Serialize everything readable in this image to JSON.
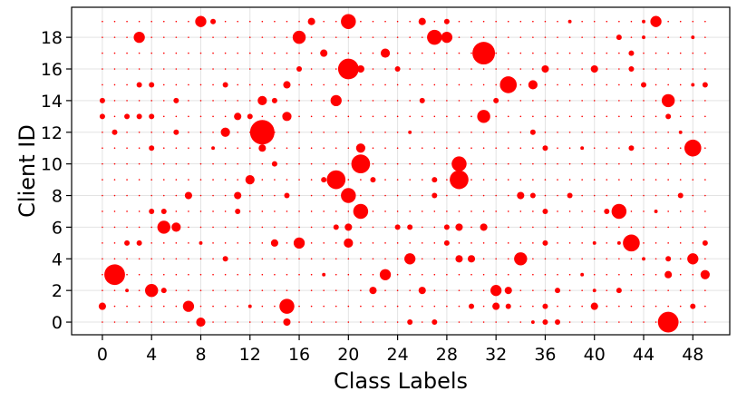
{
  "chart_data": {
    "type": "scatter",
    "xlabel": "Class Labels",
    "ylabel": "Client ID",
    "xlim": [
      -2.5,
      51
    ],
    "ylim": [
      -0.8,
      19.9
    ],
    "xticks": [
      0,
      4,
      8,
      12,
      16,
      20,
      24,
      28,
      32,
      36,
      40,
      44,
      48
    ],
    "yticks": [
      0,
      2,
      4,
      6,
      8,
      10,
      12,
      14,
      16,
      18
    ],
    "grid": true,
    "marker_color": "#ff0000",
    "size_encoding": "marker area proportional to number of samples (relative scale 0-10)",
    "points": [
      [
        0,
        1,
        3
      ],
      [
        1,
        3,
        10
      ],
      [
        4,
        2,
        6
      ],
      [
        7,
        1,
        5
      ],
      [
        8,
        0,
        4
      ],
      [
        15,
        1,
        7
      ],
      [
        15,
        0,
        3
      ],
      [
        22,
        2,
        3
      ],
      [
        26,
        2,
        3
      ],
      [
        30,
        1,
        2
      ],
      [
        32,
        2,
        5
      ],
      [
        33,
        2,
        3
      ],
      [
        32,
        1,
        3
      ],
      [
        33,
        1,
        2
      ],
      [
        36,
        0,
        2
      ],
      [
        37,
        0,
        2
      ],
      [
        40,
        1,
        3
      ],
      [
        46,
        0,
        10
      ],
      [
        46,
        3,
        3
      ],
      [
        49,
        3,
        4
      ],
      [
        48,
        1,
        2
      ],
      [
        48,
        4,
        5
      ],
      [
        49,
        5,
        2
      ],
      [
        46,
        4,
        2
      ],
      [
        43,
        5,
        8
      ],
      [
        42,
        5,
        1
      ],
      [
        34,
        4,
        6
      ],
      [
        25,
        4,
        5
      ],
      [
        23,
        3,
        5
      ],
      [
        29,
        4,
        3
      ],
      [
        30,
        4,
        3
      ],
      [
        20,
        5,
        4
      ],
      [
        16,
        5,
        5
      ],
      [
        14,
        5,
        3
      ],
      [
        2,
        5,
        2
      ],
      [
        3,
        5,
        2
      ],
      [
        5,
        6,
        6
      ],
      [
        6,
        6,
        4
      ],
      [
        7,
        8,
        3
      ],
      [
        11,
        8,
        3
      ],
      [
        12,
        9,
        4
      ],
      [
        14,
        10,
        2
      ],
      [
        13,
        11,
        3
      ],
      [
        13,
        12,
        12
      ],
      [
        12,
        13,
        2
      ],
      [
        13,
        14,
        4
      ],
      [
        15,
        13,
        4
      ],
      [
        15,
        15,
        3
      ],
      [
        14,
        14,
        2
      ],
      [
        19,
        14,
        5
      ],
      [
        20,
        16,
        10
      ],
      [
        21,
        16,
        3
      ],
      [
        16,
        18,
        6
      ],
      [
        17,
        19,
        3
      ],
      [
        20,
        19,
        7
      ],
      [
        18,
        17,
        3
      ],
      [
        16,
        16,
        2
      ],
      [
        19,
        9,
        9
      ],
      [
        20,
        8,
        7
      ],
      [
        21,
        7,
        7
      ],
      [
        21,
        10,
        9
      ],
      [
        21,
        11,
        4
      ],
      [
        19,
        6,
        2
      ],
      [
        20,
        6,
        3
      ],
      [
        24,
        16,
        2
      ],
      [
        23,
        17,
        4
      ],
      [
        27,
        18,
        7
      ],
      [
        28,
        18,
        5
      ],
      [
        29,
        10,
        7
      ],
      [
        29,
        9,
        9
      ],
      [
        29,
        6,
        3
      ],
      [
        28,
        5,
        2
      ],
      [
        31,
        17,
        11
      ],
      [
        31,
        13,
        6
      ],
      [
        32,
        14,
        2
      ],
      [
        33,
        15,
        8
      ],
      [
        35,
        15,
        4
      ],
      [
        35,
        12,
        2
      ],
      [
        36,
        11,
        2
      ],
      [
        36,
        16,
        3
      ],
      [
        40,
        16,
        3
      ],
      [
        42,
        7,
        7
      ],
      [
        41,
        7,
        2
      ],
      [
        43,
        11,
        2
      ],
      [
        43,
        17,
        2
      ],
      [
        43,
        16,
        2
      ],
      [
        45,
        19,
        5
      ],
      [
        46,
        14,
        6
      ],
      [
        46,
        13,
        2
      ],
      [
        48,
        11,
        8
      ],
      [
        39,
        3,
        1
      ],
      [
        38,
        8,
        2
      ],
      [
        34,
        8,
        3
      ],
      [
        31,
        6,
        3
      ],
      [
        26,
        14,
        2
      ],
      [
        26,
        19,
        3
      ],
      [
        28,
        19,
        2
      ],
      [
        25,
        12,
        1
      ],
      [
        10,
        12,
        4
      ],
      [
        9,
        19,
        2
      ],
      [
        8,
        19,
        5
      ],
      [
        3,
        18,
        5
      ],
      [
        4,
        13,
        2
      ],
      [
        3,
        13,
        2
      ],
      [
        2,
        13,
        2
      ],
      [
        0,
        13,
        2
      ],
      [
        0,
        14,
        2
      ],
      [
        4,
        11,
        2
      ],
      [
        1,
        12,
        2
      ],
      [
        4,
        15,
        2
      ],
      [
        3,
        15,
        2
      ],
      [
        4,
        7,
        2
      ],
      [
        5,
        7,
        2
      ],
      [
        9,
        11,
        1
      ],
      [
        11,
        13,
        3
      ],
      [
        10,
        15,
        2
      ],
      [
        6,
        14,
        2
      ],
      [
        6,
        12,
        2
      ],
      [
        22,
        9,
        2
      ],
      [
        15,
        8,
        2
      ],
      [
        11,
        7,
        2
      ],
      [
        18,
        9,
        2
      ],
      [
        24,
        6,
        2
      ],
      [
        25,
        6,
        2
      ],
      [
        28,
        6,
        2
      ],
      [
        27,
        8,
        2
      ],
      [
        27,
        9,
        2
      ],
      [
        35,
        8,
        2
      ],
      [
        36,
        7,
        2
      ],
      [
        36,
        5,
        2
      ],
      [
        37,
        2,
        2
      ],
      [
        36,
        1,
        2
      ],
      [
        39,
        11,
        1
      ],
      [
        40,
        5,
        1
      ],
      [
        44,
        4,
        1
      ],
      [
        45,
        7,
        1
      ],
      [
        44,
        15,
        2
      ],
      [
        44,
        18,
        1
      ],
      [
        38,
        19,
        1
      ],
      [
        42,
        18,
        2
      ],
      [
        44,
        19,
        1
      ],
      [
        48,
        18,
        1
      ],
      [
        48,
        15,
        1
      ],
      [
        49,
        15,
        2
      ],
      [
        47,
        8,
        2
      ],
      [
        47,
        12,
        1
      ],
      [
        5,
        2,
        2
      ],
      [
        2,
        2,
        1
      ],
      [
        10,
        4,
        2
      ],
      [
        8,
        5,
        1
      ],
      [
        12,
        1,
        1
      ],
      [
        18,
        3,
        1
      ],
      [
        25,
        0,
        2
      ],
      [
        27,
        0,
        2
      ],
      [
        35,
        0,
        1
      ],
      [
        40,
        2,
        1
      ],
      [
        42,
        2,
        2
      ]
    ]
  }
}
